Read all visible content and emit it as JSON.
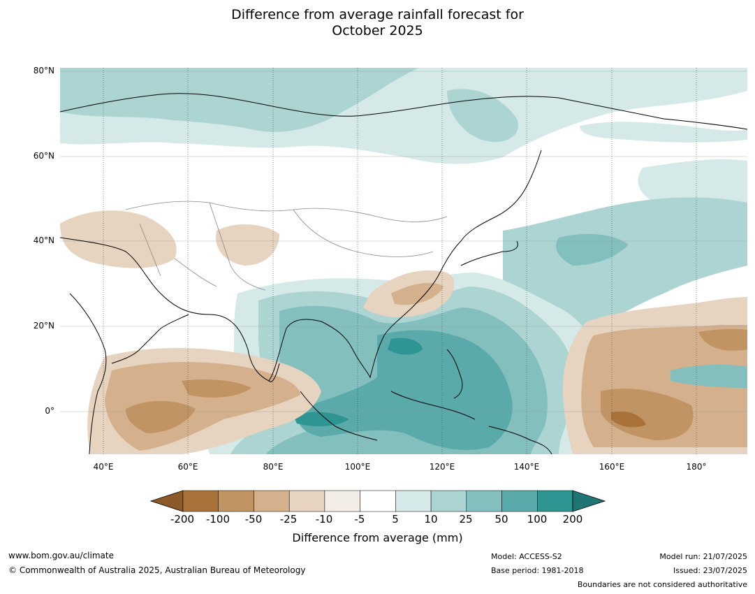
{
  "title_line1": "Difference from average rainfall forecast for",
  "title_line2": "October 2025",
  "lat_labels": [
    "80°N",
    "60°N",
    "40°N",
    "20°N",
    "0°"
  ],
  "lon_labels": [
    "40°E",
    "60°E",
    "80°E",
    "100°E",
    "120°E",
    "140°E",
    "160°E",
    "180°"
  ],
  "colorbar": {
    "title": "Difference from average (mm)",
    "tick_labels": [
      "-200",
      "-100",
      "-50",
      "-25",
      "-10",
      "-5",
      "5",
      "10",
      "25",
      "50",
      "100",
      "200"
    ],
    "colors": [
      "#8c5a2a",
      "#a87238",
      "#c19463",
      "#d4b08c",
      "#e6d3c0",
      "#f2ede6",
      "#ffffff",
      "#d4e9e8",
      "#acd4d3",
      "#82bfbd",
      "#5aaaa9",
      "#2e9593",
      "#1f7573"
    ]
  },
  "footer": {
    "url": "www.bom.gov.au/climate",
    "copyright": "© Commonwealth of Australia 2025, Australian Bureau of Meteorology",
    "model": "Model: ACCESS-S2",
    "base_period": "Base period: 1981-2018",
    "model_run": "Model run: 21/07/2025",
    "issued": "Issued: 23/07/2025",
    "disclaimer": "Boundaries are not considered authoritative"
  }
}
